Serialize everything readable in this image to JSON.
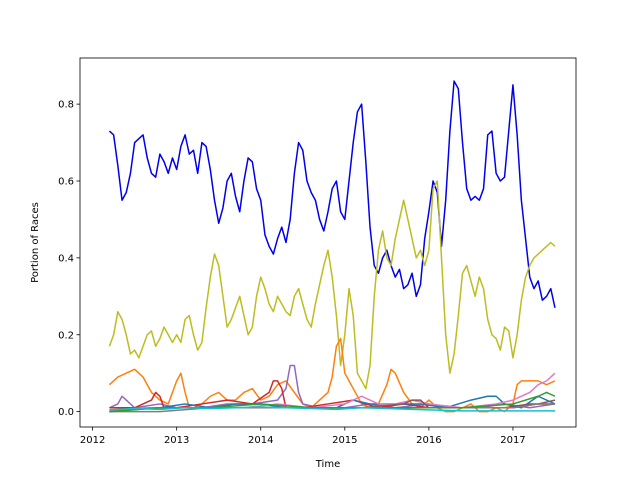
{
  "chart_data": {
    "type": "line",
    "title": "",
    "xlabel": "Time",
    "ylabel": "Portion of Races",
    "x_ticks": [
      2012,
      2013,
      2014,
      2015,
      2016,
      2017
    ],
    "y_ticks": [
      0.0,
      0.2,
      0.4,
      0.6,
      0.8
    ],
    "x_tick_labels": [
      "2012",
      "2013",
      "2014",
      "2015",
      "2016",
      "2017"
    ],
    "y_tick_labels": [
      "0.0",
      "0.2",
      "0.4",
      "0.6",
      "0.8"
    ],
    "xlim": [
      2011.85,
      2017.75
    ],
    "ylim": [
      -0.04,
      0.92
    ],
    "grid": false,
    "legend": false,
    "series": [
      {
        "color": "#0000ee",
        "x": [
          2012.2,
          2012.25,
          2012.3,
          2012.35,
          2012.4,
          2012.45,
          2012.5,
          2012.55,
          2012.6,
          2012.65,
          2012.7,
          2012.75,
          2012.8,
          2012.85,
          2012.9,
          2012.95,
          2013.0,
          2013.05,
          2013.1,
          2013.15,
          2013.2,
          2013.25,
          2013.3,
          2013.35,
          2013.4,
          2013.45,
          2013.5,
          2013.55,
          2013.6,
          2013.65,
          2013.7,
          2013.75,
          2013.8,
          2013.85,
          2013.9,
          2013.95,
          2014.0,
          2014.05,
          2014.1,
          2014.15,
          2014.2,
          2014.25,
          2014.3,
          2014.35,
          2014.4,
          2014.45,
          2014.5,
          2014.55,
          2014.6,
          2014.65,
          2014.7,
          2014.75,
          2014.8,
          2014.85,
          2014.9,
          2014.95,
          2015.0,
          2015.05,
          2015.1,
          2015.15,
          2015.2,
          2015.25,
          2015.3,
          2015.35,
          2015.4,
          2015.45,
          2015.5,
          2015.55,
          2015.6,
          2015.65,
          2015.7,
          2015.75,
          2015.8,
          2015.85,
          2015.9,
          2015.95,
          2016.0,
          2016.05,
          2016.1,
          2016.15,
          2016.2,
          2016.25,
          2016.3,
          2016.35,
          2016.4,
          2016.45,
          2016.5,
          2016.55,
          2016.6,
          2016.65,
          2016.7,
          2016.75,
          2016.8,
          2016.85,
          2016.9,
          2016.95,
          2017.0,
          2017.05,
          2017.1,
          2017.15,
          2017.2,
          2017.25,
          2017.3,
          2017.35,
          2017.4,
          2017.45,
          2017.5
        ],
        "y": [
          0.73,
          0.72,
          0.64,
          0.55,
          0.57,
          0.62,
          0.7,
          0.71,
          0.72,
          0.66,
          0.62,
          0.61,
          0.67,
          0.65,
          0.62,
          0.66,
          0.63,
          0.69,
          0.72,
          0.67,
          0.68,
          0.62,
          0.7,
          0.69,
          0.63,
          0.55,
          0.49,
          0.53,
          0.6,
          0.62,
          0.56,
          0.52,
          0.6,
          0.66,
          0.65,
          0.58,
          0.55,
          0.46,
          0.43,
          0.41,
          0.45,
          0.48,
          0.44,
          0.5,
          0.62,
          0.7,
          0.68,
          0.6,
          0.57,
          0.55,
          0.5,
          0.47,
          0.52,
          0.58,
          0.6,
          0.52,
          0.5,
          0.6,
          0.7,
          0.78,
          0.8,
          0.65,
          0.48,
          0.38,
          0.36,
          0.4,
          0.42,
          0.38,
          0.35,
          0.37,
          0.32,
          0.33,
          0.36,
          0.3,
          0.33,
          0.45,
          0.52,
          0.6,
          0.57,
          0.43,
          0.55,
          0.73,
          0.86,
          0.84,
          0.7,
          0.58,
          0.55,
          0.56,
          0.55,
          0.58,
          0.72,
          0.73,
          0.62,
          0.6,
          0.61,
          0.73,
          0.85,
          0.72,
          0.55,
          0.45,
          0.35,
          0.32,
          0.34,
          0.29,
          0.3,
          0.32,
          0.27
        ]
      },
      {
        "color": "#bcbd22",
        "x": [
          2012.2,
          2012.25,
          2012.3,
          2012.35,
          2012.4,
          2012.45,
          2012.5,
          2012.55,
          2012.6,
          2012.65,
          2012.7,
          2012.75,
          2012.8,
          2012.85,
          2012.9,
          2012.95,
          2013.0,
          2013.05,
          2013.1,
          2013.15,
          2013.2,
          2013.25,
          2013.3,
          2013.35,
          2013.4,
          2013.45,
          2013.5,
          2013.55,
          2013.6,
          2013.65,
          2013.7,
          2013.75,
          2013.8,
          2013.85,
          2013.9,
          2013.95,
          2014.0,
          2014.05,
          2014.1,
          2014.15,
          2014.2,
          2014.25,
          2014.3,
          2014.35,
          2014.4,
          2014.45,
          2014.5,
          2014.55,
          2014.6,
          2014.65,
          2014.7,
          2014.75,
          2014.8,
          2014.85,
          2014.9,
          2014.95,
          2015.0,
          2015.05,
          2015.1,
          2015.15,
          2015.2,
          2015.25,
          2015.3,
          2015.35,
          2015.4,
          2015.45,
          2015.5,
          2015.55,
          2015.6,
          2015.65,
          2015.7,
          2015.75,
          2015.8,
          2015.85,
          2015.9,
          2015.95,
          2016.0,
          2016.05,
          2016.1,
          2016.15,
          2016.2,
          2016.25,
          2016.3,
          2016.35,
          2016.4,
          2016.45,
          2016.5,
          2016.55,
          2016.6,
          2016.65,
          2016.7,
          2016.75,
          2016.8,
          2016.85,
          2016.9,
          2016.95,
          2017.0,
          2017.05,
          2017.1,
          2017.15,
          2017.2,
          2017.25,
          2017.3,
          2017.35,
          2017.4,
          2017.45,
          2017.5
        ],
        "y": [
          0.17,
          0.2,
          0.26,
          0.24,
          0.2,
          0.15,
          0.16,
          0.14,
          0.17,
          0.2,
          0.21,
          0.17,
          0.19,
          0.22,
          0.2,
          0.18,
          0.2,
          0.18,
          0.24,
          0.25,
          0.2,
          0.16,
          0.18,
          0.27,
          0.35,
          0.41,
          0.38,
          0.3,
          0.22,
          0.24,
          0.27,
          0.3,
          0.25,
          0.2,
          0.22,
          0.3,
          0.35,
          0.32,
          0.28,
          0.26,
          0.3,
          0.28,
          0.26,
          0.25,
          0.3,
          0.32,
          0.28,
          0.24,
          0.22,
          0.28,
          0.33,
          0.38,
          0.42,
          0.35,
          0.25,
          0.12,
          0.2,
          0.32,
          0.25,
          0.1,
          0.08,
          0.06,
          0.12,
          0.3,
          0.42,
          0.47,
          0.4,
          0.38,
          0.45,
          0.5,
          0.55,
          0.5,
          0.45,
          0.4,
          0.42,
          0.38,
          0.42,
          0.58,
          0.6,
          0.4,
          0.2,
          0.1,
          0.15,
          0.25,
          0.36,
          0.38,
          0.34,
          0.3,
          0.35,
          0.32,
          0.24,
          0.2,
          0.19,
          0.16,
          0.22,
          0.21,
          0.14,
          0.2,
          0.29,
          0.35,
          0.38,
          0.4,
          0.41,
          0.42,
          0.43,
          0.44,
          0.43
        ]
      },
      {
        "color": "#ff7f0e",
        "x": [
          2012.2,
          2012.3,
          2012.4,
          2012.5,
          2012.6,
          2012.7,
          2012.8,
          2012.9,
          2013.0,
          2013.05,
          2013.1,
          2013.15,
          2013.2,
          2013.3,
          2013.4,
          2013.5,
          2013.6,
          2013.7,
          2013.8,
          2013.9,
          2014.0,
          2014.1,
          2014.2,
          2014.3,
          2014.4,
          2014.5,
          2014.6,
          2014.7,
          2014.8,
          2014.85,
          2014.9,
          2014.95,
          2015.0,
          2015.1,
          2015.2,
          2015.3,
          2015.4,
          2015.5,
          2015.55,
          2015.6,
          2015.7,
          2015.8,
          2015.9,
          2016.0,
          2016.1,
          2016.2,
          2016.3,
          2016.4,
          2016.5,
          2016.6,
          2016.7,
          2016.8,
          2016.9,
          2017.0,
          2017.05,
          2017.1,
          2017.2,
          2017.3,
          2017.4,
          2017.5
        ],
        "y": [
          0.07,
          0.09,
          0.1,
          0.11,
          0.09,
          0.05,
          0.03,
          0.02,
          0.08,
          0.1,
          0.05,
          0.01,
          0.01,
          0.02,
          0.04,
          0.05,
          0.03,
          0.03,
          0.05,
          0.06,
          0.03,
          0.04,
          0.07,
          0.08,
          0.05,
          0.02,
          0.01,
          0.03,
          0.05,
          0.09,
          0.17,
          0.19,
          0.1,
          0.06,
          0.02,
          0.01,
          0.02,
          0.07,
          0.11,
          0.1,
          0.05,
          0.02,
          0.01,
          0.03,
          0.01,
          0.0,
          0.0,
          0.01,
          0.02,
          0.0,
          0.0,
          0.01,
          0.0,
          0.02,
          0.07,
          0.08,
          0.08,
          0.08,
          0.07,
          0.08
        ]
      },
      {
        "color": "#9467bd",
        "x": [
          2012.2,
          2012.3,
          2012.35,
          2012.4,
          2012.5,
          2012.8,
          2013.0,
          2013.3,
          2013.6,
          2013.9,
          2014.2,
          2014.3,
          2014.35,
          2014.4,
          2014.45,
          2014.5,
          2014.7,
          2015.0,
          2015.3,
          2015.6,
          2016.0,
          2016.3,
          2016.6,
          2016.9,
          2017.2,
          2017.5
        ],
        "y": [
          0.01,
          0.02,
          0.04,
          0.03,
          0.01,
          0.02,
          0.01,
          0.01,
          0.02,
          0.02,
          0.03,
          0.06,
          0.12,
          0.12,
          0.05,
          0.02,
          0.01,
          0.01,
          0.02,
          0.01,
          0.02,
          0.01,
          0.01,
          0.02,
          0.01,
          0.02
        ]
      },
      {
        "color": "#d62728",
        "x": [
          2012.2,
          2012.5,
          2012.7,
          2012.75,
          2012.8,
          2012.85,
          2013.0,
          2013.3,
          2013.6,
          2013.9,
          2014.1,
          2014.15,
          2014.2,
          2014.25,
          2014.3,
          2014.5,
          2014.8,
          2015.1,
          2015.4,
          2015.7,
          2016.0,
          2016.3,
          2016.6,
          2016.9,
          2017.2,
          2017.5
        ],
        "y": [
          0.01,
          0.01,
          0.03,
          0.05,
          0.04,
          0.01,
          0.01,
          0.02,
          0.03,
          0.02,
          0.05,
          0.08,
          0.08,
          0.06,
          0.01,
          0.01,
          0.02,
          0.03,
          0.01,
          0.02,
          0.01,
          0.01,
          0.01,
          0.01,
          0.02,
          0.02
        ]
      },
      {
        "color": "#1f77b4",
        "x": [
          2012.2,
          2012.5,
          2012.8,
          2013.1,
          2013.4,
          2013.7,
          2014.0,
          2014.3,
          2014.6,
          2014.9,
          2015.1,
          2015.3,
          2015.6,
          2015.9,
          2016.2,
          2016.5,
          2016.7,
          2016.8,
          2016.9,
          2017.1,
          2017.3,
          2017.5
        ],
        "y": [
          0.0,
          0.01,
          0.01,
          0.02,
          0.01,
          0.02,
          0.02,
          0.01,
          0.01,
          0.01,
          0.03,
          0.02,
          0.02,
          0.02,
          0.01,
          0.03,
          0.04,
          0.04,
          0.02,
          0.01,
          0.04,
          0.02
        ]
      },
      {
        "color": "#e377c2",
        "x": [
          2012.2,
          2012.6,
          2013.0,
          2013.4,
          2013.8,
          2014.2,
          2014.6,
          2015.0,
          2015.2,
          2015.4,
          2015.6,
          2015.8,
          2016.0,
          2016.4,
          2016.8,
          2017.0,
          2017.2,
          2017.3,
          2017.4,
          2017.45,
          2017.5
        ],
        "y": [
          0.0,
          0.01,
          0.01,
          0.01,
          0.01,
          0.02,
          0.01,
          0.02,
          0.04,
          0.02,
          0.02,
          0.03,
          0.02,
          0.01,
          0.02,
          0.03,
          0.05,
          0.07,
          0.08,
          0.09,
          0.1
        ]
      },
      {
        "color": "#8c564b",
        "x": [
          2012.2,
          2012.8,
          2013.4,
          2014.0,
          2014.6,
          2015.2,
          2015.7,
          2015.8,
          2015.9,
          2016.0,
          2016.6,
          2017.0,
          2017.3,
          2017.5
        ],
        "y": [
          0.0,
          0.01,
          0.01,
          0.01,
          0.01,
          0.01,
          0.02,
          0.03,
          0.03,
          0.01,
          0.01,
          0.01,
          0.02,
          0.03
        ]
      },
      {
        "color": "#7f7f7f",
        "x": [
          2012.2,
          2012.8,
          2013.4,
          2014.0,
          2014.6,
          2015.2,
          2015.8,
          2016.4,
          2017.0,
          2017.3,
          2017.5
        ],
        "y": [
          0.0,
          0.0,
          0.01,
          0.01,
          0.01,
          0.01,
          0.01,
          0.01,
          0.01,
          0.02,
          0.02
        ]
      },
      {
        "color": "#2ca02c",
        "x": [
          2012.2,
          2012.8,
          2013.4,
          2014.0,
          2014.6,
          2015.2,
          2015.8,
          2016.4,
          2017.0,
          2017.3,
          2017.4,
          2017.5
        ],
        "y": [
          0.0,
          0.01,
          0.01,
          0.02,
          0.01,
          0.01,
          0.01,
          0.01,
          0.02,
          0.04,
          0.05,
          0.04
        ]
      },
      {
        "color": "#17becf",
        "x": [
          2012.2,
          2012.5,
          2012.8,
          2013.1,
          2013.4,
          2013.7,
          2014.0,
          2014.3,
          2014.6,
          2014.9,
          2015.2,
          2015.5,
          2015.8,
          2016.1,
          2016.4,
          2016.7,
          2017.0,
          2017.3,
          2017.5
        ],
        "y": [
          0.005,
          0.008,
          0.006,
          0.01,
          0.008,
          0.01,
          0.012,
          0.01,
          0.008,
          0.006,
          0.01,
          0.008,
          0.006,
          0.004,
          0.002,
          0.002,
          0.002,
          0.002,
          0.002
        ]
      }
    ]
  }
}
